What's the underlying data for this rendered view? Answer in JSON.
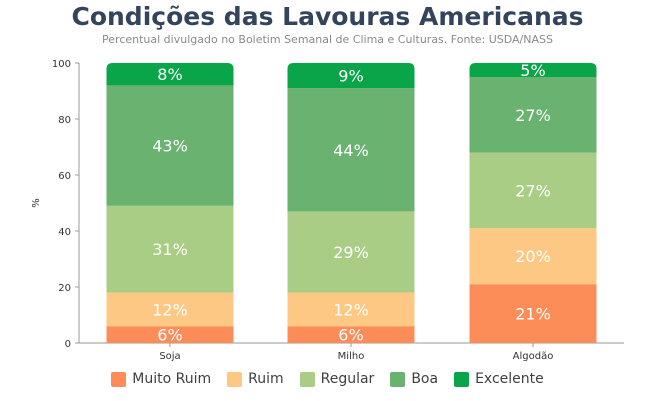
{
  "chart_data": {
    "type": "bar",
    "stacked": true,
    "title": "Condições das Lavouras Americanas",
    "subtitle": "Percentual divulgado no Boletim Semanal de Clima e Culturas. Fonte: USDA/NASS",
    "xlabel": "",
    "ylabel": "%",
    "ylim": [
      0,
      100
    ],
    "yticks": [
      0,
      20,
      40,
      60,
      80,
      100
    ],
    "grid": false,
    "legend_position": "bottom",
    "categories": [
      "Soja",
      "Milho",
      "Algodão"
    ],
    "series": [
      {
        "name": "Muito Ruim",
        "color": "#fd8d58",
        "values": [
          6,
          6,
          21
        ]
      },
      {
        "name": "Ruim",
        "color": "#fdc883",
        "values": [
          12,
          12,
          20
        ]
      },
      {
        "name": "Regular",
        "color": "#aacd86",
        "values": [
          31,
          29,
          27
        ]
      },
      {
        "name": "Boa",
        "color": "#69b26f",
        "values": [
          43,
          44,
          27
        ]
      },
      {
        "name": "Excelente",
        "color": "#0aa548",
        "values": [
          8,
          9,
          5
        ]
      }
    ]
  }
}
